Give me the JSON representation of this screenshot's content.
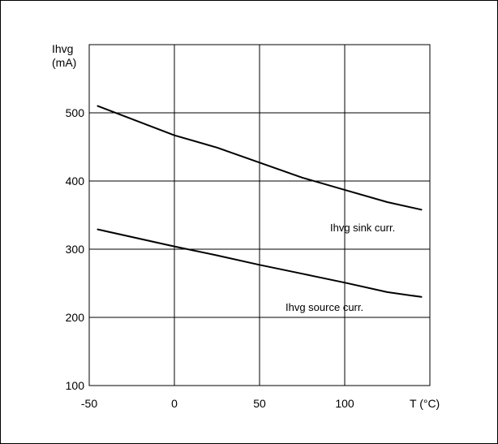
{
  "chart_data": {
    "type": "line",
    "title": "",
    "ylabel": [
      "Ihvg",
      "(mA)"
    ],
    "xlabel": "T (°C)",
    "xlim": [
      -50,
      150
    ],
    "ylim": [
      100,
      600
    ],
    "grid": true,
    "x_ticks": [
      -50,
      0,
      50,
      100
    ],
    "y_ticks": [
      100,
      200,
      300,
      400,
      500
    ],
    "x_gridlines": [
      -50,
      0,
      50,
      100,
      150
    ],
    "y_gridlines": [
      100,
      200,
      300,
      400,
      500,
      600
    ],
    "line_color": "#000000",
    "series": [
      {
        "name": "Ihvg sink curr.",
        "x": [
          -45,
          0,
          25,
          50,
          75,
          100,
          125,
          145
        ],
        "y": [
          510,
          467,
          449,
          427,
          405,
          387,
          369,
          358
        ]
      },
      {
        "name": "Ihvg source curr.",
        "x": [
          -45,
          0,
          25,
          50,
          75,
          100,
          125,
          145
        ],
        "y": [
          329,
          304,
          291,
          277,
          264,
          251,
          237,
          230
        ]
      }
    ],
    "annotations": [
      {
        "text": "Ihvg sink curr.",
        "series": 0
      },
      {
        "text": "Ihvg source curr.",
        "series": 1
      }
    ]
  }
}
